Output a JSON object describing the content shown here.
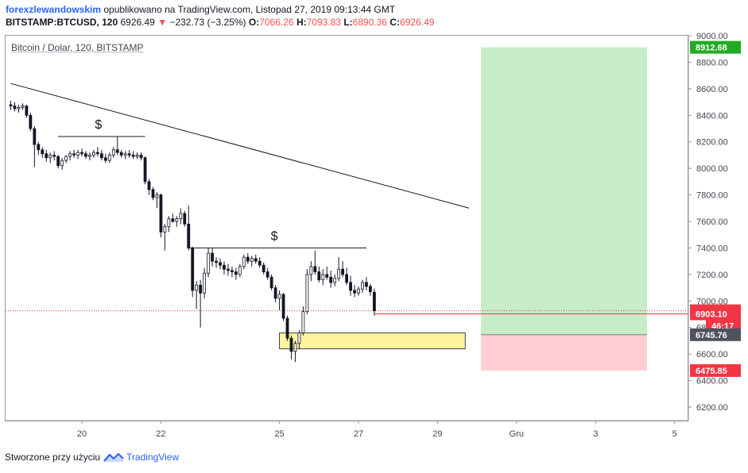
{
  "header": {
    "author": "forexzlewandowskim",
    "published": " opublikowano na TradingView.com, Listopad 27, 2019 09:13:44 GMT",
    "symbol": "BITSTAMP:BTCUSD, 120",
    "last": "6926.49",
    "change_arrow": "▼",
    "change": "−232.73 (−3.25%)",
    "o_label": "O:",
    "o_value": "7066.26",
    "h_label": "H:",
    "h_value": "7093.83",
    "l_label": "L:",
    "l_value": "6890.36",
    "c_label": "C:",
    "c_value": "6926.49"
  },
  "pane": {
    "title": "Bitcoin / Dolar, 120, BITSTAMP"
  },
  "footer": {
    "text": "Stworzone przy użyciu",
    "brand": "TradingView"
  },
  "colors": {
    "up": "#26a69a",
    "down": "#ef5350",
    "candle": "#131722",
    "profit_zone": "#c8ebc8",
    "loss_zone": "#ffcdd2",
    "support_box": "#fff59d",
    "target_tag": "#22ab22",
    "price_tag": "#f23645",
    "stop_tag": "#f23645",
    "entry_tag": "#50535e"
  },
  "chart_data": {
    "type": "candlestick",
    "symbol": "BITSTAMP:BTCUSD",
    "interval": "120",
    "ylim": [
      6100,
      9050
    ],
    "y_ticks": [
      "9000.00",
      "8800.00",
      "8600.00",
      "8400.00",
      "8200.00",
      "8000.00",
      "7800.00",
      "7600.00",
      "7400.00",
      "7200.00",
      "7000.00",
      "6800.00",
      "6600.00",
      "6400.00",
      "6200.00"
    ],
    "x_ticks": [
      {
        "label": "20",
        "day": 20
      },
      {
        "label": "22",
        "day": 22
      },
      {
        "label": "25",
        "day": 25
      },
      {
        "label": "27",
        "day": 27
      },
      {
        "label": "29",
        "day": 29
      },
      {
        "label": "Gru",
        "day": 31
      },
      {
        "label": "3",
        "day": 33
      },
      {
        "label": "5",
        "day": 35
      }
    ],
    "candles": [
      [
        18.2,
        8480,
        8510,
        8440,
        8470
      ],
      [
        18.3,
        8470,
        8500,
        8430,
        8450
      ],
      [
        18.4,
        8450,
        8480,
        8420,
        8460
      ],
      [
        18.5,
        8460,
        8490,
        8440,
        8470
      ],
      [
        18.6,
        8470,
        8480,
        8380,
        8400
      ],
      [
        18.7,
        8400,
        8420,
        8280,
        8300
      ],
      [
        18.8,
        8300,
        8320,
        8010,
        8180
      ],
      [
        18.9,
        8180,
        8200,
        8100,
        8140
      ],
      [
        19.0,
        8140,
        8160,
        8080,
        8110
      ],
      [
        19.1,
        8110,
        8140,
        8050,
        8080
      ],
      [
        19.2,
        8080,
        8120,
        8040,
        8100
      ],
      [
        19.3,
        8100,
        8130,
        8060,
        8090
      ],
      [
        19.4,
        8090,
        8100,
        8000,
        8020
      ],
      [
        19.5,
        8020,
        8080,
        7990,
        8060
      ],
      [
        19.6,
        8060,
        8100,
        8040,
        8090
      ],
      [
        19.7,
        8090,
        8130,
        8060,
        8110
      ],
      [
        19.8,
        8110,
        8140,
        8080,
        8100
      ],
      [
        19.9,
        8100,
        8140,
        8070,
        8120
      ],
      [
        20.0,
        8120,
        8150,
        8090,
        8110
      ],
      [
        20.1,
        8110,
        8130,
        8070,
        8090
      ],
      [
        20.2,
        8090,
        8120,
        8060,
        8100
      ],
      [
        20.3,
        8100,
        8140,
        8080,
        8120
      ],
      [
        20.4,
        8120,
        8160,
        8090,
        8110
      ],
      [
        20.5,
        8110,
        8140,
        8060,
        8080
      ],
      [
        20.6,
        8080,
        8110,
        8040,
        8060
      ],
      [
        20.7,
        8060,
        8120,
        8040,
        8100
      ],
      [
        20.8,
        8100,
        8160,
        8080,
        8140
      ],
      [
        20.9,
        8140,
        8240,
        8100,
        8120
      ],
      [
        21.0,
        8120,
        8140,
        8080,
        8100
      ],
      [
        21.1,
        8100,
        8130,
        8070,
        8110
      ],
      [
        21.2,
        8110,
        8140,
        8080,
        8100
      ],
      [
        21.3,
        8100,
        8130,
        8070,
        8090
      ],
      [
        21.4,
        8090,
        8120,
        8070,
        8100
      ],
      [
        21.5,
        8100,
        8120,
        8060,
        8080
      ],
      [
        21.6,
        8080,
        8090,
        7880,
        7900
      ],
      [
        21.7,
        7900,
        7920,
        7800,
        7840
      ],
      [
        21.8,
        7840,
        7860,
        7760,
        7780
      ],
      [
        21.9,
        7780,
        7820,
        7700,
        7800
      ],
      [
        22.0,
        7800,
        7810,
        7480,
        7520
      ],
      [
        22.1,
        7520,
        7580,
        7380,
        7560
      ],
      [
        22.2,
        7560,
        7640,
        7520,
        7620
      ],
      [
        22.3,
        7620,
        7660,
        7590,
        7600
      ],
      [
        22.4,
        7600,
        7640,
        7560,
        7620
      ],
      [
        22.5,
        7620,
        7700,
        7580,
        7660
      ],
      [
        22.6,
        7660,
        7680,
        7560,
        7580
      ],
      [
        22.7,
        7580,
        7720,
        7380,
        7400
      ],
      [
        22.8,
        7400,
        7410,
        7030,
        7080
      ],
      [
        22.9,
        7080,
        7150,
        6940,
        7120
      ],
      [
        23.0,
        7120,
        7160,
        6800,
        7060
      ],
      [
        23.1,
        7060,
        7250,
        7020,
        7210
      ],
      [
        23.2,
        7210,
        7400,
        7180,
        7360
      ],
      [
        23.3,
        7360,
        7400,
        7260,
        7300
      ],
      [
        23.4,
        7300,
        7330,
        7250,
        7290
      ],
      [
        23.5,
        7290,
        7320,
        7240,
        7270
      ],
      [
        23.6,
        7270,
        7300,
        7200,
        7240
      ],
      [
        23.7,
        7240,
        7280,
        7190,
        7230
      ],
      [
        23.8,
        7230,
        7260,
        7180,
        7220
      ],
      [
        23.9,
        7220,
        7250,
        7160,
        7200
      ],
      [
        24.0,
        7200,
        7280,
        7180,
        7260
      ],
      [
        24.1,
        7260,
        7350,
        7240,
        7330
      ],
      [
        24.2,
        7330,
        7360,
        7280,
        7300
      ],
      [
        24.3,
        7300,
        7340,
        7260,
        7320
      ],
      [
        24.4,
        7320,
        7350,
        7280,
        7300
      ],
      [
        24.5,
        7300,
        7330,
        7250,
        7270
      ],
      [
        24.6,
        7270,
        7290,
        7200,
        7220
      ],
      [
        24.7,
        7220,
        7250,
        7160,
        7180
      ],
      [
        24.8,
        7180,
        7200,
        7080,
        7100
      ],
      [
        24.9,
        7100,
        7120,
        6990,
        7020
      ],
      [
        25.0,
        7020,
        7080,
        6930,
        7050
      ],
      [
        25.1,
        7050,
        7060,
        6850,
        6870
      ],
      [
        25.2,
        6870,
        6890,
        6700,
        6720
      ],
      [
        25.3,
        6720,
        6740,
        6560,
        6620
      ],
      [
        25.4,
        6620,
        6700,
        6540,
        6680
      ],
      [
        25.5,
        6680,
        6780,
        6640,
        6760
      ],
      [
        25.6,
        6760,
        6960,
        6740,
        6920
      ],
      [
        25.7,
        6920,
        7240,
        6900,
        7200
      ],
      [
        25.8,
        7200,
        7300,
        7150,
        7260
      ],
      [
        25.9,
        7260,
        7380,
        7200,
        7220
      ],
      [
        26.0,
        7220,
        7260,
        7140,
        7160
      ],
      [
        26.1,
        7160,
        7240,
        7120,
        7200
      ],
      [
        26.2,
        7200,
        7260,
        7160,
        7180
      ],
      [
        26.3,
        7180,
        7230,
        7100,
        7140
      ],
      [
        26.4,
        7140,
        7200,
        7110,
        7170
      ],
      [
        26.5,
        7170,
        7330,
        7150,
        7240
      ],
      [
        26.6,
        7240,
        7300,
        7180,
        7200
      ],
      [
        26.7,
        7200,
        7250,
        7120,
        7140
      ],
      [
        26.8,
        7140,
        7190,
        7040,
        7080
      ],
      [
        26.9,
        7080,
        7120,
        7030,
        7060
      ],
      [
        27.0,
        7060,
        7110,
        7040,
        7090
      ],
      [
        27.1,
        7090,
        7160,
        7060,
        7140
      ],
      [
        27.2,
        7140,
        7180,
        7080,
        7110
      ],
      [
        27.3,
        7110,
        7130,
        7040,
        7070
      ],
      [
        27.4,
        7066.26,
        7093.83,
        6890.36,
        6926.49
      ]
    ],
    "trendline": {
      "from": [
        18.2,
        8640
      ],
      "to": [
        29.8,
        7700
      ]
    },
    "resistance_lines": [
      {
        "from": [
          19.4,
          8240
        ],
        "to": [
          21.6,
          8240
        ],
        "label": "$"
      },
      {
        "from": [
          22.7,
          7400
        ],
        "to": [
          27.2,
          7400
        ],
        "label": "$"
      }
    ],
    "support_box": {
      "from_day": 25.0,
      "to_day": 29.7,
      "top": 6760,
      "bottom": 6640
    },
    "position": {
      "from_day": 30.1,
      "to_day": 34.3,
      "target": 8912.68,
      "entry": 6745.76,
      "stop": 6475.85
    },
    "price_tags": [
      {
        "label": "8912.68",
        "value": 8912.68,
        "kind": "target"
      },
      {
        "label": "6926.49",
        "value": 6926.49,
        "kind": "price"
      },
      {
        "label": "46:17",
        "value": 6842,
        "kind": "countdown"
      },
      {
        "label": "6903.10",
        "value": 6903.1,
        "kind": "stop"
      },
      {
        "label": "6745.76",
        "value": 6745.76,
        "kind": "entry"
      },
      {
        "label": "6475.85",
        "value": 6475.85,
        "kind": "stop"
      }
    ],
    "last_price": 6926.49
  }
}
